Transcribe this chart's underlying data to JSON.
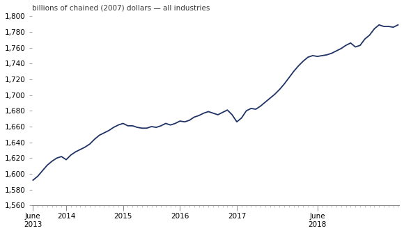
{
  "title": "billions of chained (2007) dollars — all industries",
  "line_color": "#1f3264",
  "line_width": 1.3,
  "background_color": "#ffffff",
  "ylim": [
    1560,
    1800
  ],
  "yticks": [
    1560,
    1580,
    1600,
    1620,
    1640,
    1660,
    1680,
    1700,
    1720,
    1740,
    1760,
    1780,
    1800
  ],
  "monthly_values": [
    1592,
    1597,
    1604,
    1611,
    1616,
    1620,
    1622,
    1618,
    1624,
    1628,
    1631,
    1634,
    1638,
    1644,
    1649,
    1652,
    1655,
    1659,
    1662,
    1664,
    1661,
    1661,
    1659,
    1658,
    1658,
    1660,
    1659,
    1661,
    1664,
    1662,
    1664,
    1667,
    1666,
    1668,
    1672,
    1674,
    1677,
    1679,
    1677,
    1675,
    1678,
    1681,
    1675,
    1666,
    1671,
    1680,
    1683,
    1682,
    1686,
    1691,
    1696,
    1701,
    1707,
    1714,
    1722,
    1730,
    1737,
    1743,
    1748,
    1750,
    1749,
    1750,
    1751,
    1753,
    1756,
    1759,
    1763,
    1766,
    1761,
    1763,
    1771,
    1776,
    1784,
    1789,
    1787,
    1787,
    1786,
    1789
  ]
}
